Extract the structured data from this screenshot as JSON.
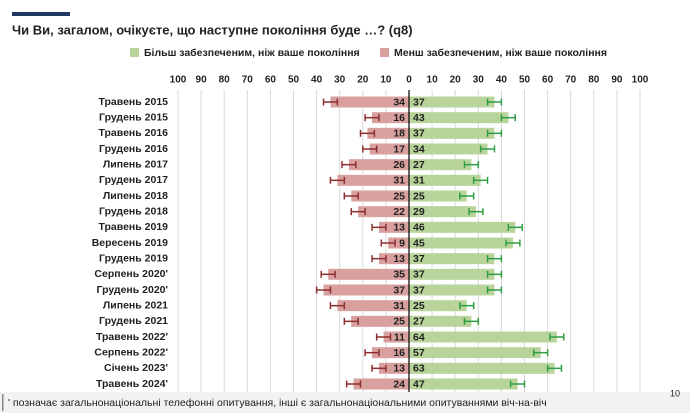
{
  "chart_data": {
    "type": "diverging-bar",
    "title": "Чи Ви, загалом, очікуєте, що наступне покоління буде …? (q8)",
    "categories": [
      "Травень 2015",
      "Грудень 2015",
      "Травень 2016",
      "Грудень 2016",
      "Липень 2017",
      "Грудень 2017",
      "Липень 2018",
      "Грудень 2018",
      "Травень 2019",
      "Вересень 2019",
      "Грудень 2019",
      "Серпень 2020'",
      "Грудень 2020'",
      "Липень 2021",
      "Грудень 2021",
      "Травень 2022'",
      "Серпень 2022'",
      "Січень 2023'",
      "Травень 2024'"
    ],
    "series": [
      {
        "name": "Більш забезпеченим, ніж ваше покоління",
        "color": "#b8d49b",
        "error_color": "#2f9e44",
        "side": "right",
        "values": [
          37,
          43,
          37,
          34,
          27,
          31,
          25,
          29,
          46,
          45,
          37,
          37,
          37,
          25,
          27,
          64,
          57,
          63,
          47
        ],
        "errors": [
          3,
          3,
          3,
          3,
          3,
          3,
          3,
          3,
          3,
          3,
          3,
          3,
          3,
          3,
          3,
          3,
          3,
          3,
          3
        ]
      },
      {
        "name": "Менш забезпеченим, ніж ваше покоління",
        "color": "#d9a0a0",
        "error_color": "#8e2f2f",
        "side": "left",
        "values": [
          34,
          16,
          18,
          17,
          26,
          31,
          25,
          22,
          13,
          9,
          13,
          35,
          37,
          31,
          25,
          11,
          16,
          13,
          24
        ],
        "errors": [
          3,
          3,
          3,
          3,
          3,
          3,
          3,
          3,
          3,
          3,
          3,
          3,
          3,
          3,
          3,
          3,
          3,
          3,
          3
        ]
      }
    ],
    "xlim": [
      -100,
      100
    ],
    "xticks": [
      {
        "value": -100,
        "label": "100"
      },
      {
        "value": -90,
        "label": "90"
      },
      {
        "value": -80,
        "label": "80"
      },
      {
        "value": -70,
        "label": "70"
      },
      {
        "value": -60,
        "label": "60"
      },
      {
        "value": -50,
        "label": "50"
      },
      {
        "value": -40,
        "label": "40"
      },
      {
        "value": -30,
        "label": "30"
      },
      {
        "value": -20,
        "label": "20"
      },
      {
        "value": -10,
        "label": "10"
      },
      0,
      10,
      20,
      30,
      40,
      50,
      60,
      70,
      80,
      90,
      100
    ],
    "grid": true
  },
  "footnote": "' позначає загальнонаціональні телефонні опитування, інші є загальнонаціональними опитуваннями віч-на-віч",
  "page_number": "10"
}
